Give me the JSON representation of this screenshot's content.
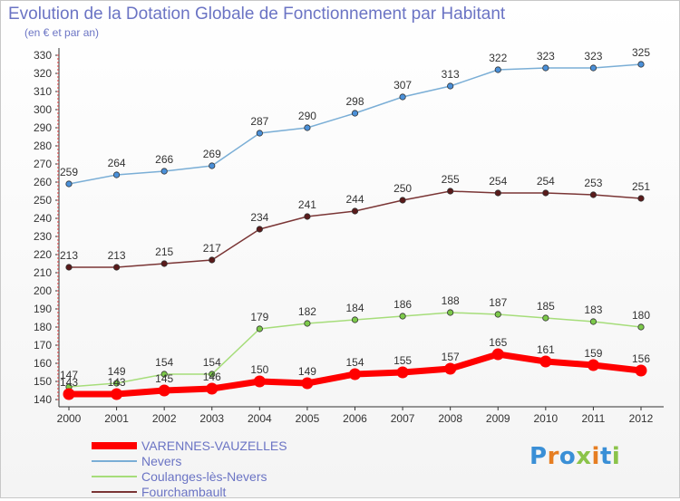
{
  "header": {
    "title": "Evolution de la Dotation Globale de Fonctionnement par Habitant",
    "subtitle": "(en € et par an)"
  },
  "brand": {
    "text": "Proxiti",
    "colors": [
      "#3a8fd6",
      "#e67e22",
      "#3a8fd6",
      "#8bc34a",
      "#e67e22",
      "#3a8fd6",
      "#8bc34a"
    ]
  },
  "chart_data": {
    "type": "line",
    "x": [
      "2000",
      "2001",
      "2002",
      "2003",
      "2004",
      "2005",
      "2006",
      "2007",
      "2008",
      "2009",
      "2010",
      "2011",
      "2012"
    ],
    "ylim": [
      140,
      330
    ],
    "yticks": [
      140,
      150,
      160,
      170,
      180,
      190,
      200,
      210,
      220,
      230,
      240,
      250,
      260,
      270,
      280,
      290,
      300,
      310,
      320,
      330
    ],
    "grid": false,
    "legend_position": "bottom-left",
    "series": [
      {
        "name": "VARENNES-VAUZELLES",
        "color": "#ff0000",
        "emphasis": true,
        "values": [
          143,
          143,
          145,
          146,
          150,
          149,
          154,
          155,
          157,
          165,
          161,
          159,
          156
        ],
        "labels": [
          "143",
          "143",
          "145",
          "146",
          "150",
          "149",
          "154",
          "155",
          "157",
          "165",
          "161",
          "159",
          "156"
        ]
      },
      {
        "name": "Nevers",
        "color": "#7aaed6",
        "marker": "#4a90d9",
        "values": [
          259,
          264,
          266,
          269,
          287,
          290,
          298,
          307,
          313,
          322,
          323,
          323,
          325
        ],
        "labels": [
          "259",
          "264",
          "266",
          "269",
          "287",
          "290",
          "298",
          "307",
          "313",
          "322",
          "323",
          "323",
          "325"
        ]
      },
      {
        "name": "Coulanges-lès-Nevers",
        "color": "#a6dd7a",
        "marker": "#7cc94a",
        "values": [
          147,
          149,
          154,
          154,
          179,
          182,
          184,
          186,
          188,
          187,
          185,
          183,
          180
        ],
        "labels": [
          "147",
          "149",
          "154",
          "154",
          "179",
          "182",
          "184",
          "186",
          "188",
          "187",
          "185",
          "183",
          "180"
        ]
      },
      {
        "name": "Fourchambault",
        "color": "#7a3535",
        "marker": "#5a1a1a",
        "values": [
          213,
          213,
          215,
          217,
          234,
          241,
          244,
          250,
          255,
          254,
          254,
          253,
          251
        ],
        "labels": [
          "213",
          "213",
          "215",
          "217",
          "234",
          "241",
          "244",
          "250",
          "255",
          "254",
          "254",
          "253",
          "251"
        ]
      }
    ]
  }
}
